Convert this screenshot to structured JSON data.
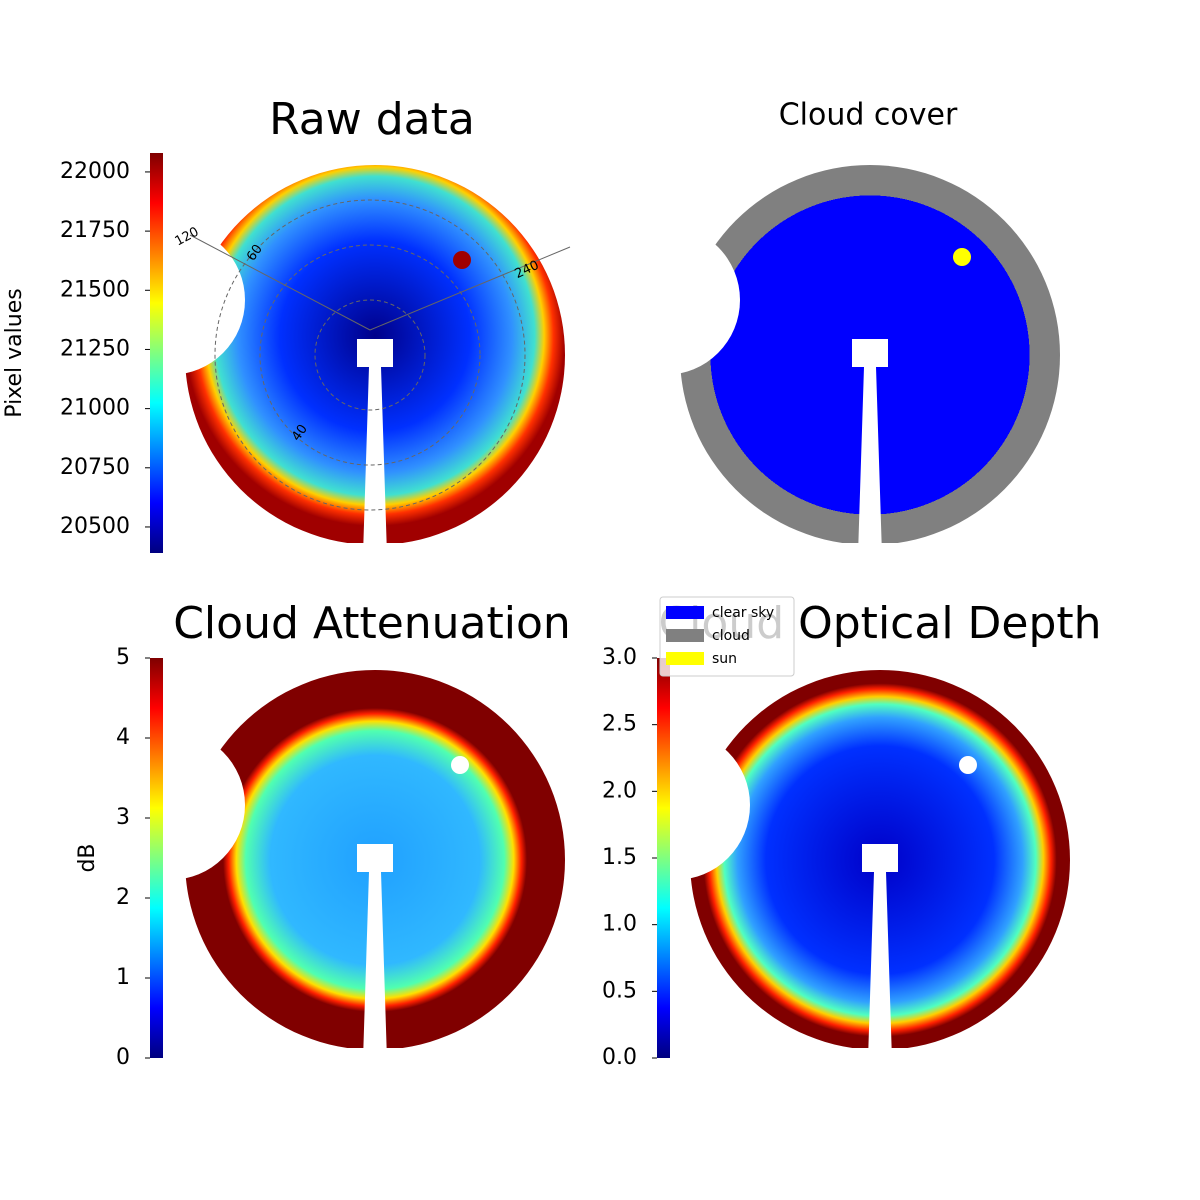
{
  "chart_data": [
    {
      "type": "image",
      "title": "Raw data",
      "colorbar_label": "Pixel values",
      "cmap": "jet",
      "clim": [
        20390,
        22080
      ],
      "cticks": [
        20500,
        20750,
        21000,
        21250,
        21500,
        21750,
        22000
      ],
      "annotations": [
        "120",
        "60",
        "240",
        "40"
      ]
    },
    {
      "type": "categorical-image",
      "title": "Cloud cover",
      "legend": "lower left",
      "series": [
        {
          "name": "clear sky",
          "color": "#0000ff"
        },
        {
          "name": "cloud",
          "color": "#808080"
        },
        {
          "name": "sun",
          "color": "#ffff00"
        }
      ]
    },
    {
      "type": "image",
      "title": "Cloud Attenuation",
      "colorbar_label": "dB",
      "cmap": "jet",
      "clim": [
        0,
        5
      ],
      "cticks": [
        0,
        1,
        2,
        3,
        4,
        5
      ]
    },
    {
      "type": "image",
      "title": "Cloud Optical Depth",
      "cmap": "jet",
      "clim": [
        0,
        3
      ],
      "cticks": [
        {
          "value": 0,
          "label": "0.0"
        },
        0.5,
        {
          "value": 1,
          "label": "1.0"
        },
        1.5,
        {
          "value": 2,
          "label": "2.0"
        },
        2.5,
        {
          "value": 3,
          "label": "3.0"
        }
      ]
    }
  ]
}
